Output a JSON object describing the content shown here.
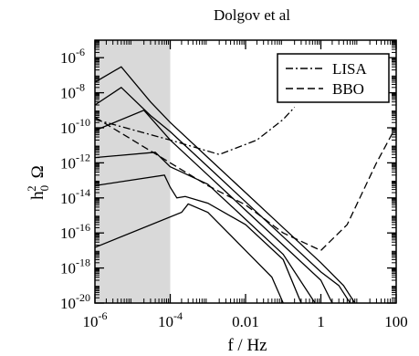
{
  "title": "Dolgov et al",
  "chart_data": {
    "type": "line",
    "title": "Dolgov et al",
    "xlabel": "f / Hz",
    "ylabel": "h0^2 Ω",
    "ylabel_parts": {
      "h": "h",
      "sub": "0",
      "sup": "2",
      "omega": "Ω"
    },
    "x_scale": "log",
    "y_scale": "log",
    "xlim": [
      1e-06,
      100
    ],
    "ylim": [
      1e-20,
      1e-05
    ],
    "x_ticks": [
      {
        "value": 1e-06,
        "label": "10",
        "exp": "-6"
      },
      {
        "value": 0.0001,
        "label": "10",
        "exp": "-4"
      },
      {
        "value": 0.01,
        "label": "0.01",
        "exp": ""
      },
      {
        "value": 1,
        "label": "1",
        "exp": ""
      },
      {
        "value": 100,
        "label": "100",
        "exp": ""
      }
    ],
    "y_ticks": [
      {
        "value": 1e-06,
        "label": "10",
        "exp": "-6"
      },
      {
        "value": 1e-08,
        "label": "10",
        "exp": "-8"
      },
      {
        "value": 1e-10,
        "label": "10",
        "exp": "-10"
      },
      {
        "value": 1e-12,
        "label": "10",
        "exp": "-12"
      },
      {
        "value": 1e-14,
        "label": "10",
        "exp": "-14"
      },
      {
        "value": 1e-16,
        "label": "10",
        "exp": "-16"
      },
      {
        "value": 1e-18,
        "label": "10",
        "exp": "-18"
      },
      {
        "value": 1e-20,
        "label": "10",
        "exp": "-20"
      }
    ],
    "shaded_region": {
      "x": [
        1e-06,
        0.0001
      ],
      "color": "#d9d9d9"
    },
    "legend": {
      "placement": "top-right",
      "entries": [
        "LISA",
        "BBO"
      ]
    },
    "grid": false,
    "series": [
      {
        "name": "LISA",
        "style": "dash-dot",
        "points": [
          [
            1e-06,
            3e-10
          ],
          [
            0.0001,
            2e-11
          ],
          [
            0.002,
            3e-12
          ],
          [
            0.02,
            2e-11
          ],
          [
            0.1,
            3e-10
          ],
          [
            0.2,
            1.5e-09
          ]
        ]
      },
      {
        "name": "BBO",
        "style": "dashed",
        "points": [
          [
            1e-06,
            4e-10
          ],
          [
            0.0001,
            1e-12
          ],
          [
            0.001,
            5e-14
          ],
          [
            0.01,
            4e-15
          ],
          [
            0.1,
            1e-16
          ],
          [
            1,
            1e-17
          ],
          [
            5,
            3e-16
          ],
          [
            30,
            1e-12
          ],
          [
            80,
            5e-11
          ]
        ]
      },
      {
        "style": "solid",
        "points": [
          [
            1e-06,
            4e-08
          ],
          [
            5e-06,
            3e-07
          ],
          [
            3e-05,
            3e-09
          ],
          [
            0.0001,
            2e-10
          ],
          [
            0.001,
            2e-12
          ],
          [
            0.01,
            2e-14
          ],
          [
            0.1,
            2e-16
          ],
          [
            1,
            2e-18
          ],
          [
            4,
            1e-19
          ],
          [
            8,
            1e-20
          ]
        ]
      },
      {
        "style": "solid",
        "points": [
          [
            1e-06,
            2e-09
          ],
          [
            5e-06,
            2e-08
          ],
          [
            3e-05,
            5e-10
          ],
          [
            0.0001,
            6e-11
          ],
          [
            0.001,
            6e-13
          ],
          [
            0.01,
            6e-15
          ],
          [
            0.1,
            6e-17
          ],
          [
            1,
            6e-19
          ],
          [
            3,
            1e-19
          ],
          [
            6,
            1e-20
          ]
        ]
      },
      {
        "style": "solid",
        "points": [
          [
            1e-06,
            7e-11
          ],
          [
            2e-05,
            1e-09
          ],
          [
            0.0001,
            2e-11
          ],
          [
            0.001,
            2e-13
          ],
          [
            0.01,
            2e-15
          ],
          [
            0.1,
            2e-17
          ],
          [
            1,
            2e-19
          ],
          [
            2,
            1e-20
          ]
        ]
      },
      {
        "style": "solid",
        "points": [
          [
            1e-06,
            2e-12
          ],
          [
            4e-05,
            4e-12
          ],
          [
            0.0001,
            6e-13
          ],
          [
            0.0002,
            3e-13
          ],
          [
            0.001,
            6e-14
          ],
          [
            0.01,
            6e-16
          ],
          [
            0.1,
            6e-18
          ],
          [
            0.7,
            1e-20
          ]
        ]
      },
      {
        "style": "solid",
        "points": [
          [
            1e-06,
            5e-14
          ],
          [
            7e-05,
            2e-13
          ],
          [
            0.0001,
            4e-14
          ],
          [
            0.00015,
            1e-14
          ],
          [
            0.00025,
            1.2e-14
          ],
          [
            0.001,
            5e-15
          ],
          [
            0.01,
            3e-16
          ],
          [
            0.1,
            3e-18
          ],
          [
            0.3,
            1e-20
          ]
        ]
      },
      {
        "style": "solid",
        "points": [
          [
            1e-06,
            1.5e-17
          ],
          [
            0.0002,
            1.5e-15
          ],
          [
            0.0003,
            4.5e-15
          ],
          [
            0.001,
            1.5e-15
          ],
          [
            0.01,
            1e-17
          ],
          [
            0.05,
            3e-19
          ],
          [
            0.1,
            1e-20
          ]
        ]
      }
    ]
  }
}
